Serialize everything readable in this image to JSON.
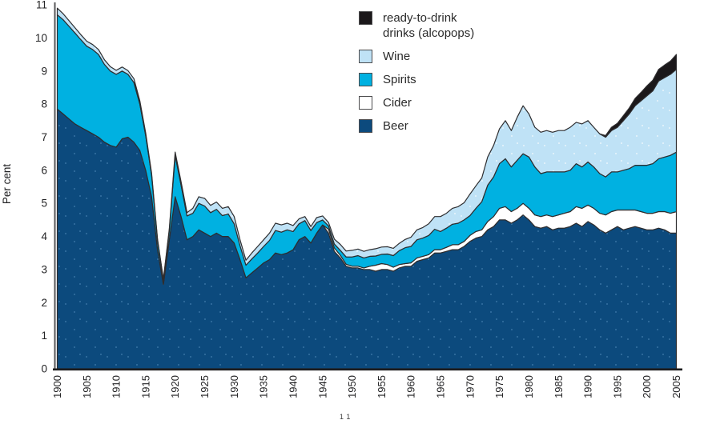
{
  "legend": {
    "items": [
      {
        "label": "ready-to-drink drinks (alcopops)",
        "color": "#1b181a"
      },
      {
        "label": "Wine",
        "color": "#bfe2f6"
      },
      {
        "label": "Spirits",
        "color": "#00b1e1"
      },
      {
        "label": "Cider",
        "color": "#ffffff"
      },
      {
        "label": "Beer",
        "color": "#0c4a7d"
      }
    ]
  },
  "footnote_fragment": "11",
  "chart_data": {
    "type": "area",
    "stacked": true,
    "title": "",
    "ylabel": "Per cent",
    "xlabel": "",
    "ylim": [
      0,
      11
    ],
    "xlim": [
      1900,
      2005
    ],
    "grid": false,
    "legend_position": "top-right",
    "x_tick_rotation": -90,
    "yticks": [
      0,
      1,
      2,
      3,
      4,
      5,
      6,
      7,
      8,
      9,
      10,
      11
    ],
    "xticks": [
      1900,
      1905,
      1910,
      1915,
      1920,
      1925,
      1930,
      1935,
      1940,
      1945,
      1950,
      1955,
      1960,
      1965,
      1970,
      1975,
      1980,
      1985,
      1990,
      1995,
      2000,
      2005
    ],
    "x_start_year": 1900,
    "colors": {
      "outline": "#2e2d2f",
      "axis": "#57575a",
      "baseline": "#1c1c1e",
      "text": "#232325"
    },
    "series": [
      {
        "name": "Beer",
        "color": "#0c4a7d",
        "dots": "#4d86b5",
        "values": [
          7.85,
          7.7,
          7.55,
          7.4,
          7.3,
          7.2,
          7.1,
          7,
          6.85,
          6.75,
          6.7,
          6.95,
          7,
          6.85,
          6.6,
          6,
          5.2,
          3.6,
          2.55,
          3.9,
          5.2,
          4.6,
          3.9,
          4,
          4.2,
          4.1,
          4,
          4.1,
          4,
          4,
          3.8,
          3.3,
          2.75,
          2.9,
          3.05,
          3.2,
          3.3,
          3.5,
          3.45,
          3.5,
          3.6,
          3.9,
          4,
          3.8,
          4.1,
          4.35,
          4.1,
          3.55,
          3.35,
          3.1,
          3.05,
          3.05,
          3,
          3,
          2.95,
          3,
          3,
          2.95,
          3.05,
          3.1,
          3.1,
          3.25,
          3.3,
          3.35,
          3.5,
          3.5,
          3.55,
          3.6,
          3.6,
          3.7,
          3.85,
          3.95,
          4,
          4.2,
          4.3,
          4.5,
          4.5,
          4.4,
          4.5,
          4.65,
          4.5,
          4.3,
          4.25,
          4.3,
          4.2,
          4.25,
          4.25,
          4.3,
          4.4,
          4.3,
          4.45,
          4.35,
          4.2,
          4.1,
          4.2,
          4.3,
          4.2,
          4.25,
          4.3,
          4.25,
          4.2,
          4.2,
          4.25,
          4.2,
          4.1,
          4.1
        ]
      },
      {
        "name": "Cider",
        "color": "#ffffff",
        "dots": null,
        "values": [
          0,
          0,
          0,
          0,
          0,
          0,
          0,
          0,
          0,
          0,
          0,
          0,
          0,
          0,
          0,
          0,
          0,
          0,
          0,
          0,
          0,
          0,
          0,
          0,
          0,
          0,
          0,
          0,
          0,
          0,
          0,
          0,
          0,
          0,
          0,
          0,
          0,
          0,
          0,
          0,
          0,
          0,
          0,
          0,
          0,
          0,
          0.12,
          0.1,
          0.08,
          0.06,
          0.05,
          0.05,
          0.05,
          0.1,
          0.18,
          0.18,
          0.15,
          0.12,
          0.1,
          0.08,
          0.1,
          0.1,
          0.1,
          0.1,
          0.1,
          0.1,
          0.12,
          0.15,
          0.15,
          0.15,
          0.18,
          0.2,
          0.2,
          0.25,
          0.3,
          0.35,
          0.4,
          0.35,
          0.35,
          0.35,
          0.35,
          0.35,
          0.35,
          0.35,
          0.4,
          0.4,
          0.45,
          0.45,
          0.5,
          0.55,
          0.5,
          0.5,
          0.5,
          0.55,
          0.55,
          0.5,
          0.6,
          0.55,
          0.5,
          0.5,
          0.5,
          0.5,
          0.5,
          0.55,
          0.6,
          0.65
        ]
      },
      {
        "name": "Spirits",
        "color": "#00b1e1",
        "dots": null,
        "values": [
          2.85,
          2.85,
          2.8,
          2.75,
          2.65,
          2.55,
          2.55,
          2.5,
          2.35,
          2.25,
          2.2,
          2.05,
          1.9,
          1.8,
          1.4,
          1.05,
          0.65,
          0.28,
          0.13,
          0.28,
          1.25,
          0.95,
          0.72,
          0.7,
          0.8,
          0.82,
          0.72,
          0.72,
          0.63,
          0.68,
          0.58,
          0.42,
          0.38,
          0.42,
          0.45,
          0.5,
          0.58,
          0.68,
          0.68,
          0.7,
          0.55,
          0.48,
          0.48,
          0.38,
          0.32,
          0.15,
          0.1,
          0.12,
          0.15,
          0.22,
          0.28,
          0.32,
          0.3,
          0.3,
          0.28,
          0.28,
          0.32,
          0.35,
          0.42,
          0.48,
          0.5,
          0.55,
          0.55,
          0.58,
          0.62,
          0.55,
          0.58,
          0.62,
          0.65,
          0.65,
          0.6,
          0.7,
          0.85,
          1.1,
          1.2,
          1.35,
          1.45,
          1.35,
          1.45,
          1.5,
          1.55,
          1.45,
          1.3,
          1.3,
          1.35,
          1.3,
          1.25,
          1.25,
          1.3,
          1.25,
          1.3,
          1.25,
          1.2,
          1.15,
          1.2,
          1.15,
          1.2,
          1.25,
          1.35,
          1.4,
          1.45,
          1.5,
          1.6,
          1.65,
          1.75,
          1.8
        ]
      },
      {
        "name": "Wine",
        "color": "#bfe2f6",
        "dots": "#ffffff",
        "values": [
          0.2,
          0.18,
          0.17,
          0.16,
          0.15,
          0.15,
          0.15,
          0.15,
          0.14,
          0.13,
          0.12,
          0.12,
          0.11,
          0.12,
          0.1,
          0.08,
          0.06,
          0.04,
          0.03,
          0.05,
          0.1,
          0.1,
          0.1,
          0.15,
          0.2,
          0.23,
          0.22,
          0.22,
          0.22,
          0.22,
          0.22,
          0.18,
          0.15,
          0.18,
          0.2,
          0.2,
          0.22,
          0.22,
          0.22,
          0.2,
          0.18,
          0.15,
          0.12,
          0.12,
          0.15,
          0.12,
          0.1,
          0.15,
          0.18,
          0.18,
          0.2,
          0.2,
          0.2,
          0.2,
          0.22,
          0.22,
          0.22,
          0.22,
          0.22,
          0.25,
          0.28,
          0.3,
          0.32,
          0.35,
          0.38,
          0.45,
          0.45,
          0.48,
          0.5,
          0.52,
          0.65,
          0.68,
          0.72,
          0.85,
          0.95,
          1.05,
          1.15,
          1.1,
          1.3,
          1.45,
          1.3,
          1.2,
          1.25,
          1.25,
          1.2,
          1.25,
          1.25,
          1.3,
          1.25,
          1.3,
          1.25,
          1.2,
          1.2,
          1.2,
          1.25,
          1.35,
          1.5,
          1.65,
          1.8,
          1.95,
          2.1,
          2.2,
          2.35,
          2.4,
          2.45,
          2.5
        ]
      },
      {
        "name": "ready-to-drink drinks (alcopops)",
        "color": "#1b181a",
        "dots": null,
        "values": [
          0,
          0,
          0,
          0,
          0,
          0,
          0,
          0,
          0,
          0,
          0,
          0,
          0,
          0,
          0,
          0,
          0,
          0,
          0,
          0,
          0,
          0,
          0,
          0,
          0,
          0,
          0,
          0,
          0,
          0,
          0,
          0,
          0,
          0,
          0,
          0,
          0,
          0,
          0,
          0,
          0,
          0,
          0,
          0,
          0,
          0,
          0,
          0,
          0,
          0,
          0,
          0,
          0,
          0,
          0,
          0,
          0,
          0,
          0,
          0,
          0,
          0,
          0,
          0,
          0,
          0,
          0,
          0,
          0,
          0,
          0,
          0,
          0,
          0,
          0,
          0,
          0,
          0,
          0,
          0,
          0,
          0,
          0,
          0,
          0,
          0,
          0,
          0,
          0,
          0,
          0,
          0,
          0,
          0.05,
          0.1,
          0.12,
          0.15,
          0.18,
          0.22,
          0.25,
          0.3,
          0.32,
          0.35,
          0.38,
          0.4,
          0.45
        ]
      }
    ]
  }
}
